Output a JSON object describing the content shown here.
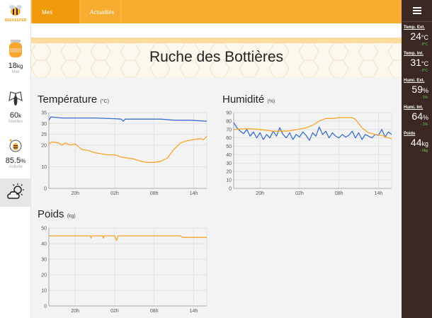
{
  "brand": {
    "logo_text": "BEEKEEPER"
  },
  "sidebar": {
    "miel": {
      "value": "18",
      "unit": "kg",
      "caption": "Miel"
    },
    "abeilles": {
      "value": "60",
      "unit": "k",
      "caption": "Abeilles"
    },
    "activite": {
      "value": "85.5",
      "unit": "%",
      "caption": "Activité"
    },
    "weather_icon": "partly-cloudy-icon"
  },
  "nav": {
    "tabs": [
      "Mes ruches",
      "Actualités"
    ]
  },
  "page": {
    "title": "Ruche des Bottières"
  },
  "charts": {
    "temperature": {
      "title": "Température",
      "unit": "(°C)"
    },
    "humidite": {
      "title": "Humidité",
      "unit": "(%)"
    },
    "poids": {
      "title": "Poids",
      "unit": "(kg)"
    }
  },
  "right_panel": {
    "metrics": [
      {
        "label": "Temp. Ext.",
        "value": "24",
        "unit": "°C",
        "delta": "- 0°C"
      },
      {
        "label": "Temp. Int.",
        "value": "31",
        "unit": "°C",
        "delta": "- 0°C"
      },
      {
        "label": "Humi. Ext.",
        "value": "59",
        "unit": "%",
        "delta": "- 1%"
      },
      {
        "label": "Humi. Int.",
        "value": "64",
        "unit": "%",
        "delta": "- 1%"
      },
      {
        "label": "Poids",
        "value": "44",
        "unit": "kg",
        "delta": "- 0kg"
      }
    ]
  },
  "colors": {
    "orange": "#f7a52b",
    "blue": "#3a6fd0",
    "dark": "#3b2823",
    "delta_green": "#66d35a"
  },
  "chart_data": [
    {
      "type": "line",
      "title": "Température",
      "ylabel": "(°C)",
      "ylim": [
        0,
        35
      ],
      "yticks": [
        0,
        10,
        20,
        25,
        30,
        35
      ],
      "xticks": [
        "20h",
        "02h",
        "08h",
        "14h"
      ],
      "xlim": [
        0,
        24
      ],
      "xtick_pos": [
        4,
        10,
        16,
        22
      ],
      "series": [
        {
          "color": "#3a6fd0",
          "points": [
            [
              0,
              31.5
            ],
            [
              0.3,
              33
            ],
            [
              2,
              32.5
            ],
            [
              4,
              32.5
            ],
            [
              7,
              32.5
            ],
            [
              10,
              32.2
            ],
            [
              11,
              32
            ],
            [
              11.3,
              31
            ],
            [
              11.6,
              32
            ],
            [
              14,
              32
            ],
            [
              17,
              32
            ],
            [
              19,
              31.5
            ],
            [
              21.5,
              31.5
            ],
            [
              24,
              31
            ]
          ]
        },
        {
          "color": "#f7a52b",
          "points": [
            [
              0,
              20.5
            ],
            [
              0.5,
              21.5
            ],
            [
              1.5,
              21
            ],
            [
              2,
              20
            ],
            [
              2.5,
              21
            ],
            [
              3.3,
              20
            ],
            [
              4,
              20.5
            ],
            [
              5,
              18
            ],
            [
              6,
              17.5
            ],
            [
              7,
              16.5
            ],
            [
              9,
              15.5
            ],
            [
              10,
              15.5
            ],
            [
              11,
              14.5
            ],
            [
              12,
              14
            ],
            [
              13,
              13.5
            ],
            [
              14,
              12.5
            ],
            [
              15,
              12
            ],
            [
              16,
              12
            ],
            [
              17,
              12.5
            ],
            [
              18,
              14
            ],
            [
              19,
              18
            ],
            [
              20,
              21
            ],
            [
              21,
              22
            ],
            [
              22,
              22.5
            ],
            [
              23,
              23
            ],
            [
              23.5,
              22.5
            ],
            [
              24,
              24
            ]
          ]
        }
      ]
    },
    {
      "type": "line",
      "title": "Humidité",
      "ylabel": "(%)",
      "ylim": [
        0,
        90
      ],
      "yticks": [
        0,
        10,
        20,
        30,
        40,
        50,
        60,
        70,
        80,
        90
      ],
      "xticks": [
        "20h",
        "02h",
        "08h",
        "14h"
      ],
      "xlim": [
        0,
        24
      ],
      "xtick_pos": [
        4,
        10,
        16,
        22
      ],
      "series": [
        {
          "color": "#3a6fd0",
          "points": [
            [
              0,
              78
            ],
            [
              0.5,
              72
            ],
            [
              1,
              68
            ],
            [
              1.5,
              65
            ],
            [
              2,
              70
            ],
            [
              2.5,
              62
            ],
            [
              3,
              67
            ],
            [
              3.5,
              60
            ],
            [
              4,
              66
            ],
            [
              4.5,
              58
            ],
            [
              5,
              64
            ],
            [
              5.5,
              60
            ],
            [
              6,
              68
            ],
            [
              6.5,
              62
            ],
            [
              7,
              72
            ],
            [
              7.5,
              64
            ],
            [
              8,
              60
            ],
            [
              8.5,
              66
            ],
            [
              9,
              58
            ],
            [
              9.5,
              64
            ],
            [
              10,
              61
            ],
            [
              10.5,
              67
            ],
            [
              11,
              63
            ],
            [
              11.5,
              57
            ],
            [
              12,
              66
            ],
            [
              12.5,
              62
            ],
            [
              13,
              73
            ],
            [
              13.5,
              64
            ],
            [
              14,
              68
            ],
            [
              14.5,
              60
            ],
            [
              15,
              66
            ],
            [
              15.5,
              62
            ],
            [
              16,
              60
            ],
            [
              16.5,
              64
            ],
            [
              17,
              61
            ],
            [
              17.5,
              63
            ],
            [
              18,
              68
            ],
            [
              18.5,
              60
            ],
            [
              19,
              66
            ],
            [
              19.5,
              58
            ],
            [
              20,
              64
            ],
            [
              20.5,
              62
            ],
            [
              21,
              60
            ],
            [
              21.5,
              64
            ],
            [
              22,
              63
            ],
            [
              22.5,
              70
            ],
            [
              23,
              61
            ],
            [
              23.5,
              67
            ],
            [
              24,
              64
            ]
          ]
        },
        {
          "color": "#f7a52b",
          "points": [
            [
              0,
              70
            ],
            [
              2,
              71
            ],
            [
              4,
              70
            ],
            [
              6,
              68
            ],
            [
              8,
              68
            ],
            [
              9,
              69
            ],
            [
              11,
              72
            ],
            [
              12,
              75
            ],
            [
              13,
              80
            ],
            [
              14,
              83
            ],
            [
              15,
              83
            ],
            [
              16,
              84
            ],
            [
              17,
              84
            ],
            [
              18,
              84
            ],
            [
              18.5,
              82
            ],
            [
              19.5,
              72
            ],
            [
              20.5,
              66
            ],
            [
              21.5,
              64
            ],
            [
              22.5,
              63
            ],
            [
              23.5,
              60
            ],
            [
              24,
              59
            ]
          ]
        }
      ]
    },
    {
      "type": "line",
      "title": "Poids",
      "ylabel": "(kg)",
      "ylim": [
        0,
        50
      ],
      "yticks": [
        0,
        10,
        20,
        30,
        40,
        50
      ],
      "xticks": [
        "20h",
        "02h",
        "08h",
        "14h"
      ],
      "xlim": [
        0,
        24
      ],
      "xtick_pos": [
        4,
        10,
        16,
        22
      ],
      "series": [
        {
          "color": "#f7a52b",
          "points": [
            [
              0,
              45
            ],
            [
              6.3,
              45
            ],
            [
              6.4,
              43.5
            ],
            [
              6.5,
              45
            ],
            [
              8.2,
              45
            ],
            [
              8.3,
              43.5
            ],
            [
              8.4,
              45
            ],
            [
              10,
              45
            ],
            [
              10.3,
              42
            ],
            [
              10.5,
              45
            ],
            [
              20,
              45
            ],
            [
              20.3,
              44
            ],
            [
              24,
              44
            ]
          ]
        }
      ]
    }
  ]
}
